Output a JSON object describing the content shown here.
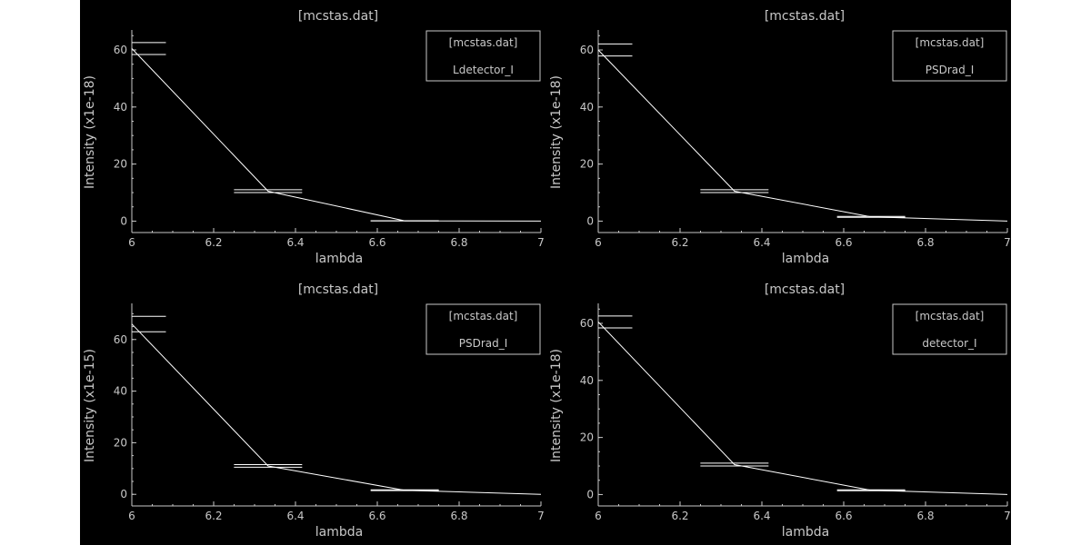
{
  "colors": {
    "background": "#000000",
    "foreground": "#c8c8c8",
    "line": "#ffffff"
  },
  "chart_data": [
    {
      "type": "line",
      "title": "[mcstas.dat]",
      "xlabel": "lambda",
      "ylabel": "Intensity (x1e-18)",
      "xlim": [
        6,
        7
      ],
      "ylim": [
        -4,
        67
      ],
      "xticks": [
        "6",
        "6.2",
        "6.4",
        "6.6",
        "6.8",
        "7"
      ],
      "yticks": [
        "0",
        "20",
        "40",
        "60"
      ],
      "legend": {
        "position": "top-right",
        "title": "[mcstas.dat]",
        "label": "Ldetector_I"
      },
      "series": [
        {
          "x": [
            6.0,
            6.333,
            6.667,
            7.0
          ],
          "values": [
            60.5,
            10.5,
            0.1,
            0.0
          ],
          "error": [
            2.1,
            0.5,
            0.05,
            0.0
          ]
        }
      ]
    },
    {
      "type": "line",
      "title": "[mcstas.dat]",
      "xlabel": "lambda",
      "ylabel": "Intensity (x1e-18)",
      "xlim": [
        6,
        7
      ],
      "ylim": [
        -4,
        67
      ],
      "xticks": [
        "6",
        "6.2",
        "6.4",
        "6.6",
        "6.8",
        "7"
      ],
      "yticks": [
        "0",
        "20",
        "40",
        "60"
      ],
      "legend": {
        "position": "top-right",
        "title": "[mcstas.dat]",
        "label": "PSDrad_I"
      },
      "series": [
        {
          "x": [
            6.0,
            6.333,
            6.667,
            7.0
          ],
          "values": [
            60.0,
            10.5,
            1.5,
            0.0
          ],
          "error": [
            2.1,
            0.5,
            0.15,
            0.0
          ]
        }
      ]
    },
    {
      "type": "line",
      "title": "[mcstas.dat]",
      "xlabel": "lambda",
      "ylabel": "Intensity (x1e-15)",
      "xlim": [
        6,
        7
      ],
      "ylim": [
        -4.5,
        74
      ],
      "xticks": [
        "6",
        "6.2",
        "6.4",
        "6.6",
        "6.8",
        "7"
      ],
      "yticks": [
        "0",
        "20",
        "40",
        "60"
      ],
      "legend": {
        "position": "top-right",
        "title": "[mcstas.dat]",
        "label": "PSDrad_I"
      },
      "series": [
        {
          "x": [
            6.0,
            6.333,
            6.667,
            7.0
          ],
          "values": [
            66.0,
            11.0,
            1.6,
            0.0
          ],
          "error": [
            3.0,
            0.5,
            0.15,
            0.0
          ]
        }
      ]
    },
    {
      "type": "line",
      "title": "[mcstas.dat]",
      "xlabel": "lambda",
      "ylabel": "Intensity (x1e-18)",
      "xlim": [
        6,
        7
      ],
      "ylim": [
        -4,
        67
      ],
      "xticks": [
        "6",
        "6.2",
        "6.4",
        "6.6",
        "6.8",
        "7"
      ],
      "yticks": [
        "0",
        "20",
        "40",
        "60"
      ],
      "legend": {
        "position": "top-right",
        "title": "[mcstas.dat]",
        "label": "detector_I"
      },
      "series": [
        {
          "x": [
            6.0,
            6.333,
            6.667,
            7.0
          ],
          "values": [
            60.5,
            10.5,
            1.5,
            0.0
          ],
          "error": [
            2.1,
            0.5,
            0.15,
            0.0
          ]
        }
      ]
    }
  ]
}
